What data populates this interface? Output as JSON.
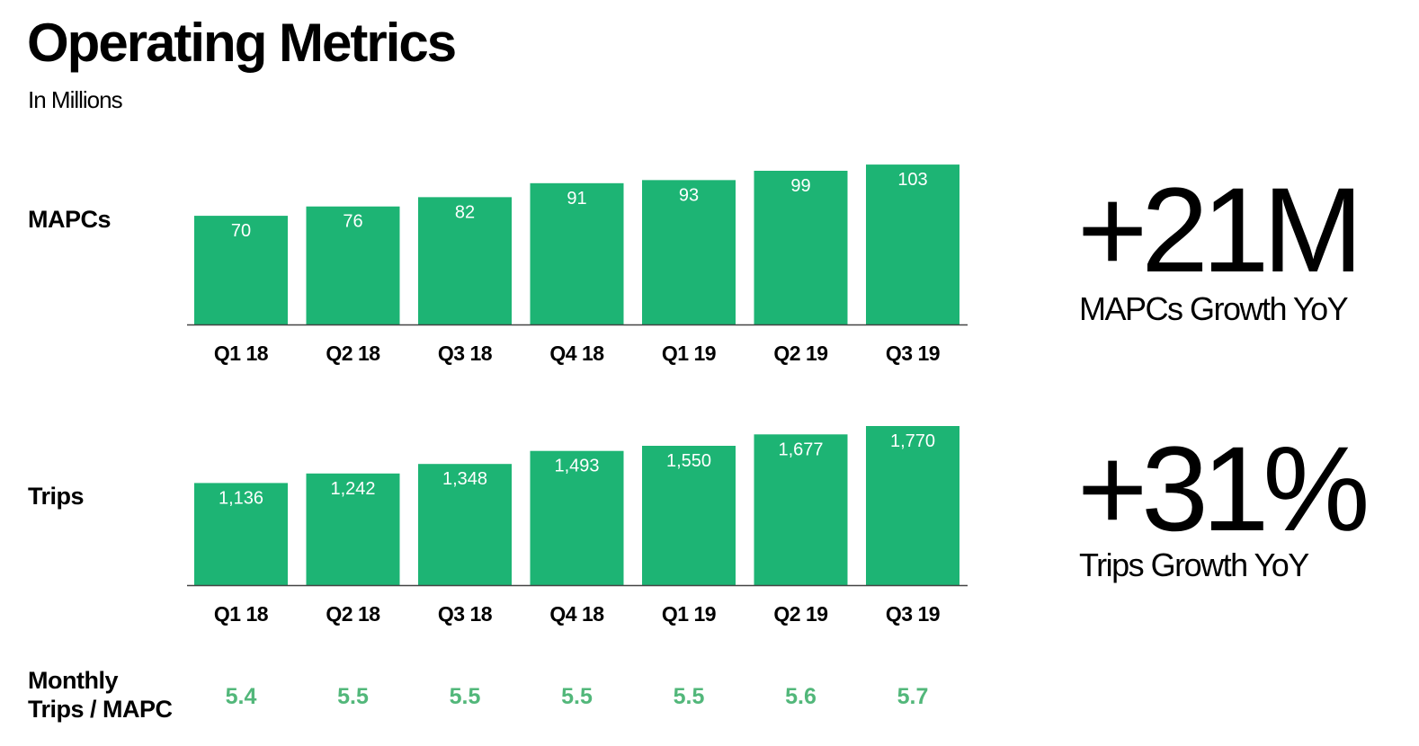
{
  "title": "Operating Metrics",
  "subtitle": "In Millions",
  "row_labels": {
    "mapcs": "MAPCs",
    "trips": "Trips",
    "ratio_line1": "Monthly",
    "ratio_line2": "Trips / MAPC"
  },
  "ratio_values": [
    "5.4",
    "5.5",
    "5.5",
    "5.5",
    "5.5",
    "5.6",
    "5.7"
  ],
  "highlights": {
    "mapcs_value": "+21M",
    "mapcs_caption": "MAPCs Growth YoY",
    "trips_value": "+31%",
    "trips_caption": "Trips Growth YoY"
  },
  "colors": {
    "bar": "#1db474",
    "bar_label": "#ffffff",
    "ratio_text": "#52b77a",
    "axis": "#444444"
  },
  "chart_data": [
    {
      "type": "bar",
      "categories": [
        "Q1 18",
        "Q2 18",
        "Q3 18",
        "Q4 18",
        "Q1 19",
        "Q2 19",
        "Q3 19"
      ],
      "values": [
        70,
        76,
        82,
        91,
        93,
        99,
        103
      ],
      "value_labels": [
        "70",
        "76",
        "82",
        "91",
        "93",
        "99",
        "103"
      ],
      "ylim": [
        0,
        110
      ],
      "grid": false
    },
    {
      "type": "bar",
      "categories": [
        "Q1 18",
        "Q2 18",
        "Q3 18",
        "Q4 18",
        "Q1 19",
        "Q2 19",
        "Q3 19"
      ],
      "values": [
        1136,
        1242,
        1348,
        1493,
        1550,
        1677,
        1770
      ],
      "value_labels": [
        "1,136",
        "1,242",
        "1,348",
        "1,493",
        "1,550",
        "1,677",
        "1,770"
      ],
      "ylim": [
        0,
        1900
      ],
      "grid": false
    }
  ]
}
